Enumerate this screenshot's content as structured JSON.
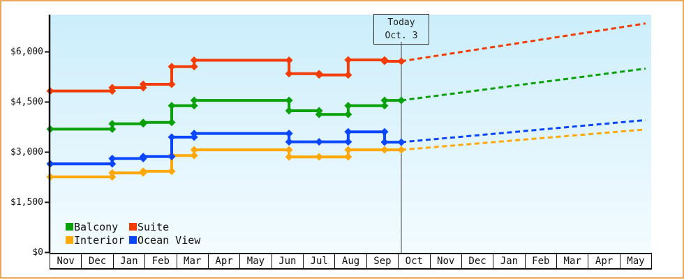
{
  "window": {
    "border_color": "#e9a65c",
    "background": "#ffffff"
  },
  "chart_data": {
    "type": "line",
    "subtype": "step-price-history-with-projection",
    "title": "",
    "plot_colors": {
      "bg_top": "#cbeefb",
      "bg_bottom": "#f3fcff",
      "axis": "#111111",
      "today_line": "#444444"
    },
    "y_axis": {
      "range": [
        0,
        7100
      ],
      "grid": false,
      "ticks": [
        {
          "value": 0,
          "label": "$0"
        },
        {
          "value": 1500,
          "label": "$1,500"
        },
        {
          "value": 3000,
          "label": "$3,000"
        },
        {
          "value": 4500,
          "label": "$4,500"
        },
        {
          "value": 6000,
          "label": "$6,000"
        }
      ]
    },
    "x_axis": {
      "month_labels": [
        "Nov",
        "Dec",
        "Jan",
        "Feb",
        "Mar",
        "Apr",
        "May",
        "Jun",
        "Jul",
        "Aug",
        "Sep",
        "Oct",
        "Nov",
        "Dec",
        "Jan",
        "Feb",
        "Mar",
        "Apr",
        "May"
      ]
    },
    "today": {
      "line1": "Today",
      "line2": "Oct. 3",
      "month_position": 11.1
    },
    "series": [
      {
        "name": "Interior",
        "color": "#ffa808",
        "points": [
          [
            0,
            2260
          ],
          [
            1.96,
            2380
          ],
          [
            2.94,
            2430
          ],
          [
            3.84,
            2900
          ],
          [
            4.55,
            3070
          ],
          [
            7.55,
            2860
          ],
          [
            8.5,
            2860
          ],
          [
            9.42,
            3070
          ],
          [
            10.57,
            3070
          ]
        ],
        "today_price": 3070,
        "projection": {
          "start": [
            11.1,
            3070
          ],
          "end": [
            18.82,
            3680
          ]
        }
      },
      {
        "name": "Ocean View",
        "color": "#0b46ff",
        "points": [
          [
            0,
            2650
          ],
          [
            1.96,
            2810
          ],
          [
            2.94,
            2870
          ],
          [
            3.84,
            3450
          ],
          [
            4.55,
            3560
          ],
          [
            7.55,
            3310
          ],
          [
            8.5,
            3310
          ],
          [
            9.42,
            3610
          ],
          [
            10.57,
            3300
          ]
        ],
        "today_price": 3300,
        "projection": {
          "start": [
            11.1,
            3300
          ],
          "end": [
            18.82,
            3960
          ]
        }
      },
      {
        "name": "Balcony",
        "color": "#0aa00a",
        "points": [
          [
            0,
            3690
          ],
          [
            1.96,
            3850
          ],
          [
            2.94,
            3890
          ],
          [
            3.84,
            4390
          ],
          [
            4.55,
            4550
          ],
          [
            7.55,
            4240
          ],
          [
            8.5,
            4130
          ],
          [
            9.42,
            4390
          ],
          [
            10.57,
            4550
          ]
        ],
        "today_price": 4550,
        "projection": {
          "start": [
            11.1,
            4550
          ],
          "end": [
            18.82,
            5500
          ]
        }
      },
      {
        "name": "Suite",
        "color": "#f23c05",
        "points": [
          [
            0,
            4830
          ],
          [
            1.96,
            4930
          ],
          [
            2.94,
            5030
          ],
          [
            3.84,
            5560
          ],
          [
            4.55,
            5750
          ],
          [
            7.55,
            5350
          ],
          [
            8.5,
            5310
          ],
          [
            9.42,
            5760
          ],
          [
            10.57,
            5720
          ]
        ],
        "today_price": 5720,
        "projection": {
          "start": [
            11.1,
            5720
          ],
          "end": [
            18.82,
            6850
          ]
        }
      }
    ],
    "legend": {
      "position": "bottom-left-inside-plot",
      "rows": [
        [
          "Balcony",
          "Suite"
        ],
        [
          "Interior",
          "Ocean View"
        ]
      ]
    }
  }
}
